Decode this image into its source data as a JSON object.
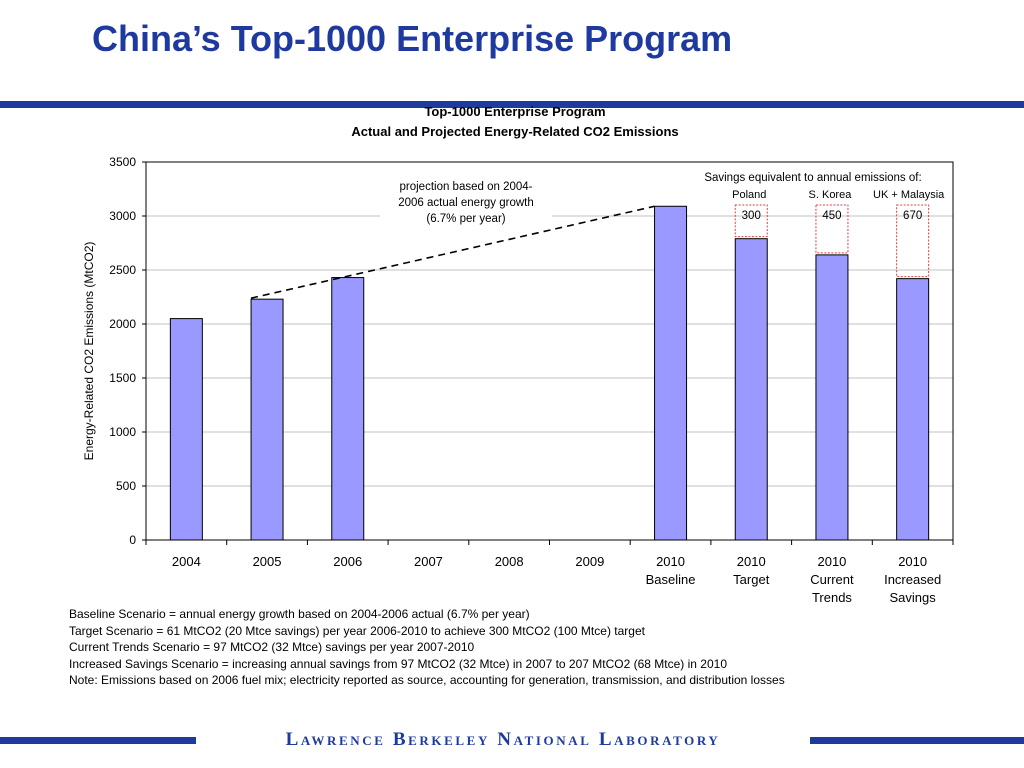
{
  "slide": {
    "title": "China’s Top-1000 Enterprise Program",
    "footer": "Lawrence Berkeley National Laboratory"
  },
  "colors": {
    "brand": "#1f3a9f",
    "bar_fill": "#9999ff",
    "savings_box": "#e04040"
  },
  "chart_data": {
    "type": "bar",
    "title_line1": "Top-1000 Enterprise Program",
    "title_line2": "Actual and Projected Energy-Related CO2 Emissions",
    "ylabel": "Energy-Related CO2 Emissions (MtCO2)",
    "xlabel": "",
    "ylim": [
      0,
      3500
    ],
    "yticks": [
      0,
      500,
      1000,
      1500,
      2000,
      2500,
      3000,
      3500
    ],
    "grid": true,
    "categories": [
      [
        "2004"
      ],
      [
        "2005"
      ],
      [
        "2006"
      ],
      [
        "2007"
      ],
      [
        "2008"
      ],
      [
        "2009"
      ],
      [
        "2010",
        "Baseline"
      ],
      [
        "2010",
        "Target"
      ],
      [
        "2010",
        "Current",
        "Trends"
      ],
      [
        "2010",
        "Increased",
        "Savings"
      ]
    ],
    "values": [
      2050,
      2230,
      2430,
      null,
      null,
      null,
      3090,
      2790,
      2640,
      2420
    ],
    "projection_note": [
      "projection based on 2004-",
      "2006 actual energy growth",
      "(6.7% per year)"
    ],
    "projection_line": {
      "from_category": 1,
      "to_category": 6
    },
    "savings_header": "Savings equivalent to annual emissions of:",
    "savings": [
      {
        "category": 7,
        "country": "Poland",
        "value": "300"
      },
      {
        "category": 8,
        "country": "S. Korea",
        "value": "450"
      },
      {
        "category": 9,
        "country": "UK + Malaysia",
        "value": "670"
      }
    ]
  },
  "notes": [
    "Baseline Scenario = annual energy growth based on 2004-2006 actual (6.7% per year)",
    "Target Scenario = 61 MtCO2 (20 Mtce savings) per year 2006-2010 to achieve 300 MtCO2 (100 Mtce) target",
    "Current Trends Scenario = 97 MtCO2 (32 Mtce) savings per year 2007-2010",
    "Increased Savings Scenario = increasing annual savings from 97 MtCO2 (32 Mtce) in 2007 to 207 MtCO2 (68 Mtce) in 2010",
    "Note: Emissions based on 2006 fuel mix; electricity reported as source, accounting for generation, transmission, and distribution losses"
  ]
}
